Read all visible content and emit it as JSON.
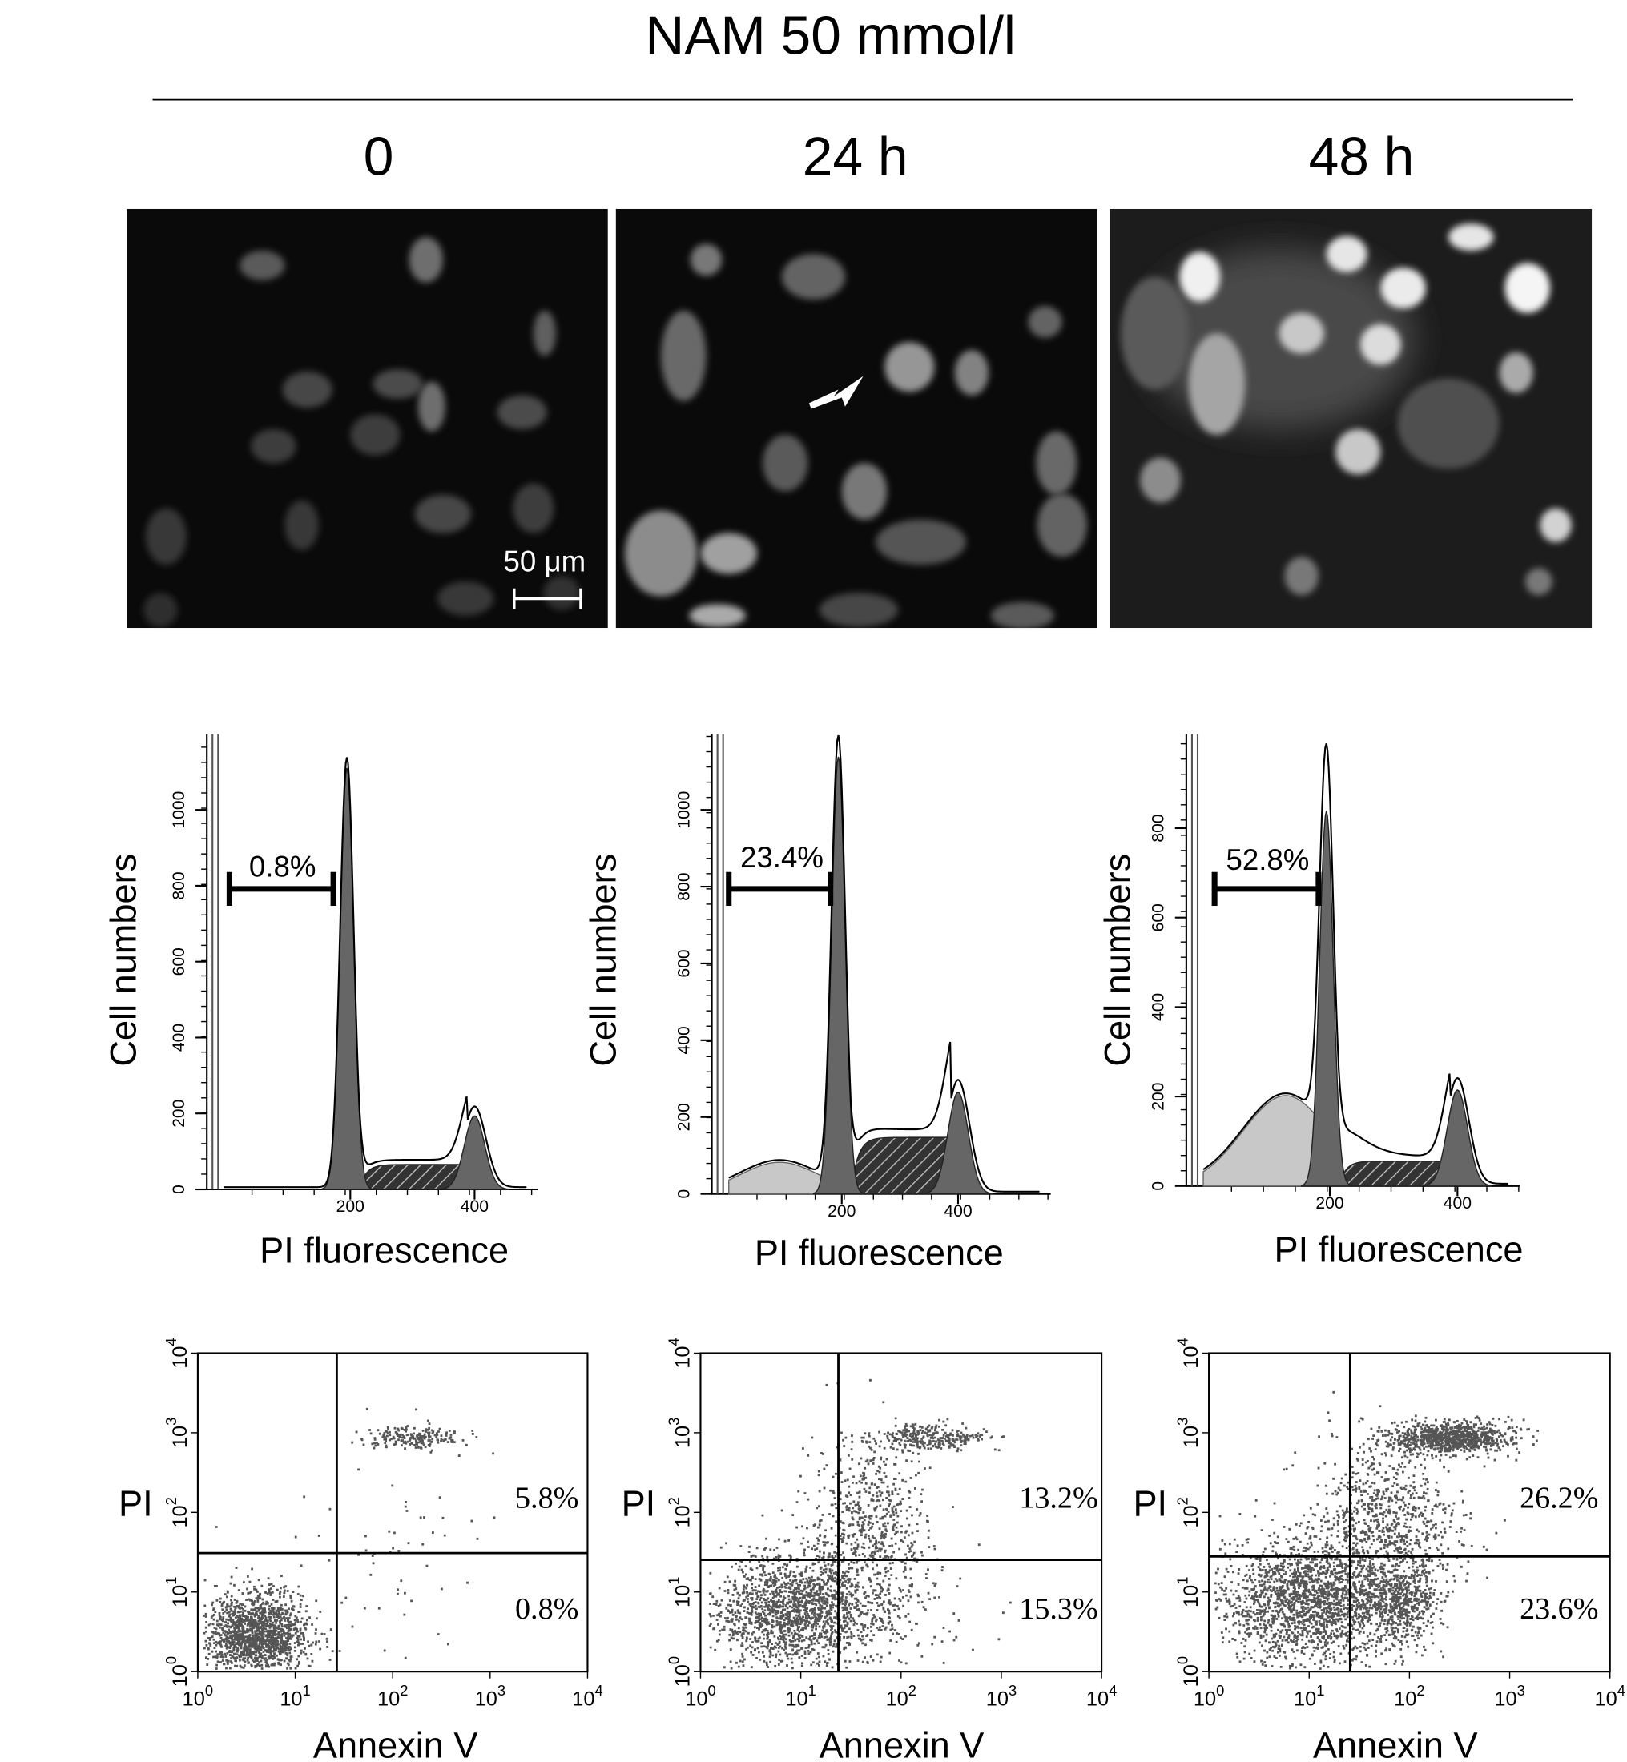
{
  "header": {
    "title": "NAM 50 mmol/l"
  },
  "columns": [
    {
      "label": "0"
    },
    {
      "label": "24 h"
    },
    {
      "label": "48 h"
    }
  ],
  "scale_bar": "50 μm",
  "histograms": [
    {
      "y_label": "Cell numbers",
      "x_label": "PI fluorescence",
      "yticks": [
        0,
        200,
        400,
        600,
        800,
        1000
      ],
      "xticks": [
        200,
        400
      ],
      "sub_g1": "0.8%"
    },
    {
      "y_label": "Cell numbers",
      "x_label": "PI fluorescence",
      "yticks": [
        0,
        200,
        400,
        600,
        800,
        1000
      ],
      "xticks": [
        200,
        400
      ],
      "sub_g1": "23.4%"
    },
    {
      "y_label": "Cell numbers",
      "x_label": "PI fluorescence",
      "yticks": [
        0,
        200,
        400,
        600,
        800
      ],
      "xticks": [
        200,
        400
      ],
      "sub_g1": "52.8%"
    }
  ],
  "log_ticks": [
    {
      "base": "10",
      "exp": "0"
    },
    {
      "base": "10",
      "exp": "1"
    },
    {
      "base": "10",
      "exp": "2"
    },
    {
      "base": "10",
      "exp": "3"
    },
    {
      "base": "10",
      "exp": "4"
    }
  ],
  "scatters": [
    {
      "y_label": "PI",
      "x_label": "Annexin V",
      "upper_right": "5.8%",
      "lower_right": "0.8%"
    },
    {
      "y_label": "PI",
      "x_label": "Annexin V",
      "upper_right": "13.2%",
      "lower_right": "15.3%"
    },
    {
      "y_label": "PI",
      "x_label": "Annexin V",
      "upper_right": "26.2%",
      "lower_right": "23.6%"
    }
  ]
}
